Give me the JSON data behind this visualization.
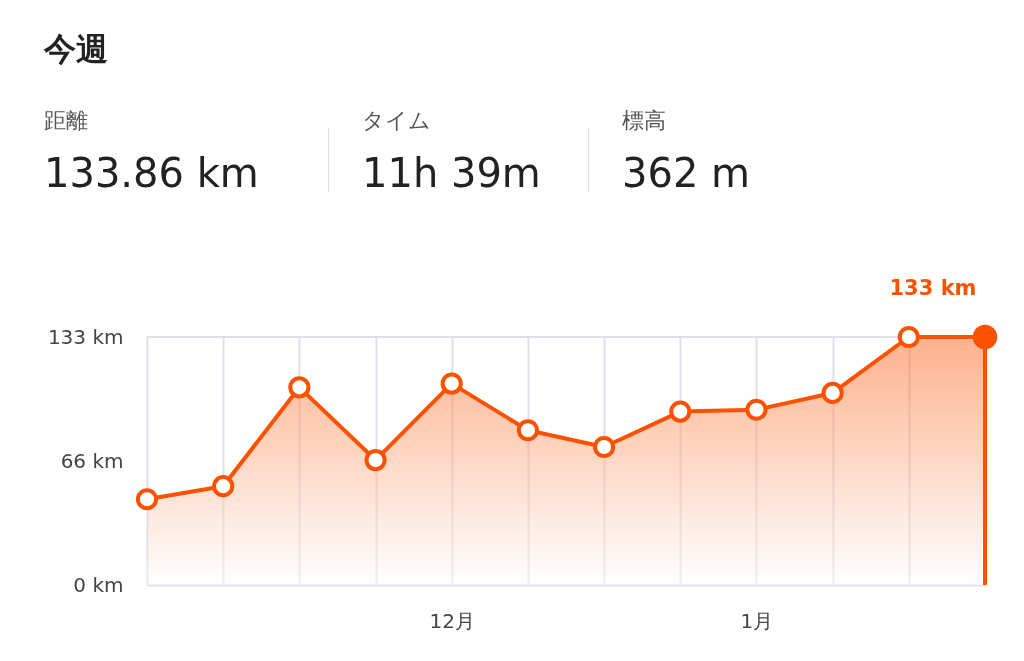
{
  "chart_data": {
    "type": "area",
    "title": "今週",
    "annotations": [
      "距離",
      "133.86 km",
      "タイム",
      "11h 39m",
      "標高",
      "362 m",
      {
        "text": "133 km",
        "y": 133
      }
    ],
    "categories": [
      null,
      null,
      null,
      null,
      "12月",
      null,
      null,
      null,
      "1月",
      null,
      null,
      null
    ],
    "series": [
      {
        "color": "#fc5200",
        "values": [
          46,
          53,
          106,
          67,
          108,
          83,
          74,
          93,
          94,
          103,
          133,
          133
        ]
      }
    ],
    "ylim": [
      0,
      133
    ],
    "yticks": [
      {
        "value": 0,
        "label": "0 km"
      },
      {
        "value": 66,
        "label": "66 km"
      },
      {
        "value": 133,
        "label": "133 km"
      }
    ],
    "grid": "x",
    "marker": "circle"
  }
}
